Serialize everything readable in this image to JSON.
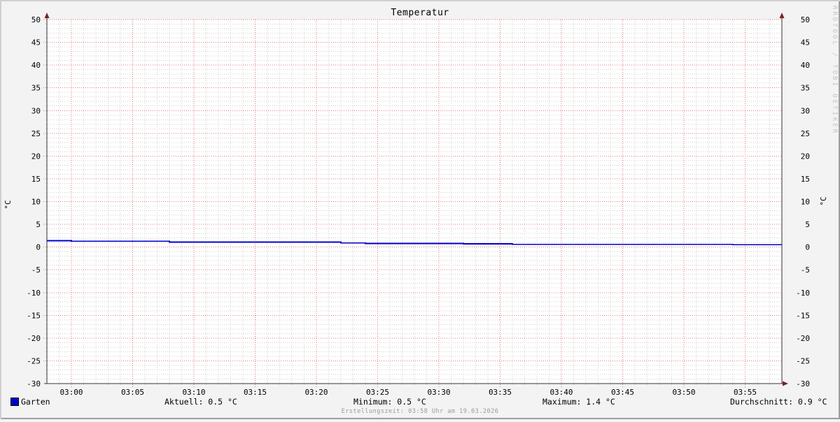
{
  "title": "Temperatur",
  "watermark": "RRDTOOL / TOBI OETIKER",
  "footer": "Erstellungszeit: 03:58 Uhr am 19.03.2026",
  "legend": {
    "series_label": "Garten",
    "swatch_color": "#0000cc"
  },
  "stats": [
    {
      "name": "aktuell",
      "text": "Aktuell: 0.5 °C"
    },
    {
      "name": "minimum",
      "text": "Minimum: 0.5 °C"
    },
    {
      "name": "maximum",
      "text": "Maximum: 1.4 °C"
    },
    {
      "name": "durchschnitt",
      "text": "Durchschnitt: 0.9 °C"
    }
  ],
  "chart_data": {
    "type": "line",
    "title": "Temperatur",
    "ylabel": "°C",
    "ylim": [
      -30,
      50
    ],
    "y_major_step": 5,
    "y_minor_step": 1,
    "x_start": "02:58",
    "x_end": "03:58",
    "x_minutes_total": 60,
    "x_major_ticks": [
      {
        "m": 2,
        "label": "03:00"
      },
      {
        "m": 7,
        "label": "03:05"
      },
      {
        "m": 12,
        "label": "03:10"
      },
      {
        "m": 17,
        "label": "03:15"
      },
      {
        "m": 22,
        "label": "03:20"
      },
      {
        "m": 27,
        "label": "03:25"
      },
      {
        "m": 32,
        "label": "03:30"
      },
      {
        "m": 37,
        "label": "03:35"
      },
      {
        "m": 42,
        "label": "03:40"
      },
      {
        "m": 47,
        "label": "03:45"
      },
      {
        "m": 52,
        "label": "03:50"
      },
      {
        "m": 57,
        "label": "03:55"
      }
    ],
    "grid": true,
    "legend_position": "bottom-left",
    "series": [
      {
        "name": "Garten",
        "color": "#0000cc",
        "step": true,
        "points": [
          [
            0,
            1.4
          ],
          [
            2,
            1.3
          ],
          [
            10,
            1.1
          ],
          [
            24,
            0.9
          ],
          [
            26,
            0.8
          ],
          [
            34,
            0.7
          ],
          [
            38,
            0.6
          ],
          [
            56,
            0.5
          ],
          [
            60,
            0.5
          ]
        ]
      }
    ],
    "stats": {
      "aktuell": "0.5 °C",
      "minimum": "0.5 °C",
      "maximum": "1.4 °C",
      "durchschnitt": "0.9 °C"
    },
    "colors": {
      "background": "#f3f3f3",
      "canvas": "#ffffff",
      "major_grid": "#e07a7a",
      "minor_grid": "#cfcfcf",
      "axis": "#333333",
      "arrow": "#7e2020",
      "text": "#000000"
    }
  }
}
